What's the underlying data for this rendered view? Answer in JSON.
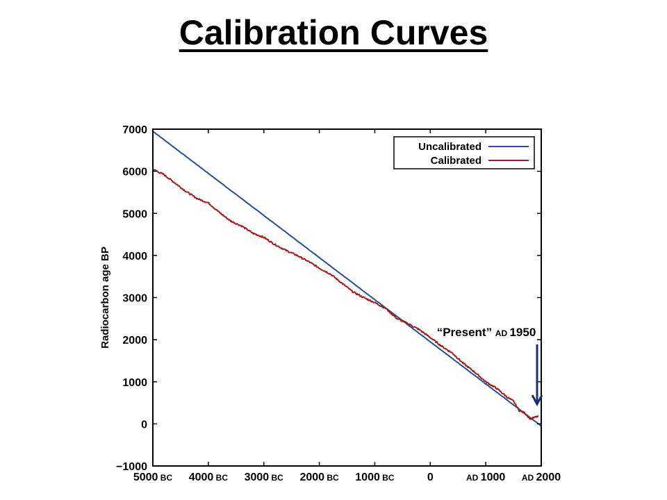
{
  "slide": {
    "title": "Calibration Curves"
  },
  "chart_data": {
    "type": "line",
    "title": "",
    "xlabel": "",
    "ylabel": "Radiocarbon age BP",
    "xlim": [
      -5000,
      2000
    ],
    "ylim": [
      -1000,
      7000
    ],
    "x_ticks": [
      {
        "value": -5000,
        "num": "5000",
        "suffix": "BC",
        "prefix": ""
      },
      {
        "value": -4000,
        "num": "4000",
        "suffix": "BC",
        "prefix": ""
      },
      {
        "value": -3000,
        "num": "3000",
        "suffix": "BC",
        "prefix": ""
      },
      {
        "value": -2000,
        "num": "2000",
        "suffix": "BC",
        "prefix": ""
      },
      {
        "value": -1000,
        "num": "1000",
        "suffix": "BC",
        "prefix": ""
      },
      {
        "value": 0,
        "num": "0",
        "suffix": "",
        "prefix": ""
      },
      {
        "value": 1000,
        "num": "1000",
        "suffix": "",
        "prefix": "AD"
      },
      {
        "value": 2000,
        "num": "2000",
        "suffix": "",
        "prefix": "AD"
      }
    ],
    "y_ticks": [
      {
        "value": 7000,
        "label": "7000"
      },
      {
        "value": 6000,
        "label": "6000"
      },
      {
        "value": 5000,
        "label": "5000"
      },
      {
        "value": 4000,
        "label": "4000"
      },
      {
        "value": 3000,
        "label": "3000"
      },
      {
        "value": 2000,
        "label": "2000"
      },
      {
        "value": 1000,
        "label": "1000"
      },
      {
        "value": 0,
        "label": "0"
      },
      {
        "value": -1000,
        "label": "−1000"
      }
    ],
    "legend": {
      "placement": "top-right"
    },
    "series": [
      {
        "name": "Uncalibrated",
        "color": "#1f4e9c",
        "x": [
          -5000,
          2000
        ],
        "y": [
          6950,
          -50
        ]
      },
      {
        "name": "Calibrated",
        "color": "#a61c1c",
        "x": [
          -5000,
          -4800,
          -4600,
          -4400,
          -4200,
          -4000,
          -3800,
          -3600,
          -3400,
          -3200,
          -3000,
          -2800,
          -2600,
          -2400,
          -2200,
          -2000,
          -1800,
          -1600,
          -1400,
          -1200,
          -1000,
          -800,
          -600,
          -400,
          -200,
          0,
          200,
          400,
          600,
          800,
          1000,
          1200,
          1400,
          1500,
          1600,
          1700,
          1800,
          1950
        ],
        "y": [
          6050,
          5920,
          5720,
          5520,
          5350,
          5250,
          5020,
          4820,
          4700,
          4530,
          4430,
          4260,
          4120,
          4000,
          3860,
          3700,
          3560,
          3350,
          3140,
          3000,
          2880,
          2740,
          2500,
          2380,
          2240,
          2050,
          1850,
          1680,
          1430,
          1230,
          1000,
          840,
          620,
          540,
          320,
          260,
          120,
          180
        ]
      }
    ],
    "annotations": [
      {
        "quote": "“Present”",
        "prefix": "AD",
        "year": "1950",
        "x": 1950,
        "y": 200
      }
    ]
  }
}
